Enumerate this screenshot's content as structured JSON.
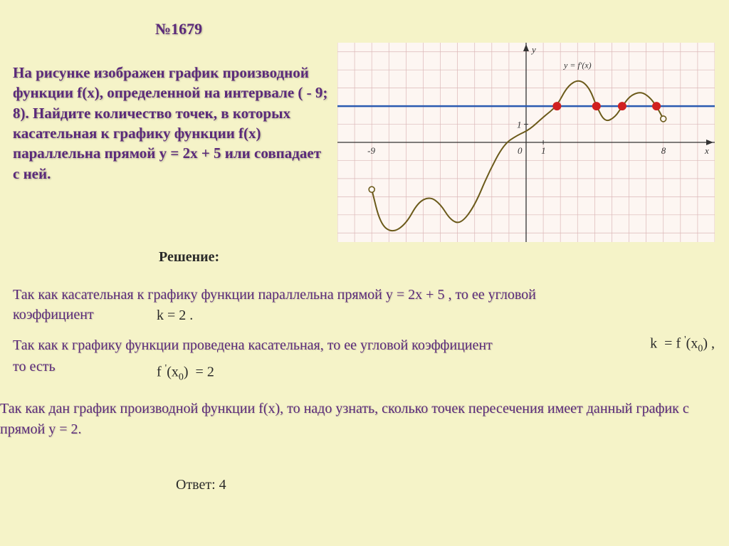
{
  "problem_number": "№1679",
  "problem_text": "На рисунке изображен график производной функции f(x), определенной на интервале ( - 9; 8).  Найдите количество точек, в которых касательная к графику функции f(x) параллельна прямой y = 2x + 5  или совпадает с ней.",
  "y_label": "у  = 2",
  "solution_label": "Решение:",
  "para1_a": "Так как касательная к графику функции параллельна прямой   ",
  "para1_b": "y = 2x + 5 , то ее угловой",
  "para1_c": "коэффициент",
  "k_eq": "k  = 2 .",
  "para2_a": "Так как к графику функции проведена касательная, то ее угловой коэффициент",
  "para2_b": "то есть",
  "k_fprime_html": "k  = f '(x₀) ,",
  "fprime_eq_html": "f '(x₀)  = 2",
  "para3": "Так как дан график производной функции f(x), то надо узнать, сколько точек пересечения имеет данный график с прямой у  = 2.",
  "answer": "Ответ: 4",
  "chart": {
    "type": "line",
    "background_color": "#fdf6f2",
    "grid_color": "#dcb8b8",
    "axis_color": "#333333",
    "curve_color": "#6b5a1a",
    "curve_width": 2,
    "horizontal_line_color": "#2a5ab0",
    "horizontal_line_y": 2,
    "horizontal_line_width": 2.5,
    "intersection_dot_color": "#d02020",
    "intersection_dot_radius": 6,
    "xlim": [
      -11,
      11
    ],
    "ylim": [
      -5.5,
      5.5
    ],
    "x_ticks": [
      -9,
      0,
      1,
      8
    ],
    "y_ticks": [
      0,
      1
    ],
    "function_label": "y = f'(x)",
    "axis_labels": {
      "x": "x",
      "y": "y"
    },
    "intersections_x": [
      1.8,
      4.1,
      5.6,
      7.6
    ],
    "endpoints_x": [
      -9,
      8
    ],
    "endpoint_marker": "open-circle",
    "curve_points": [
      [
        -9,
        -2.6
      ],
      [
        -8.5,
        -4.5
      ],
      [
        -7.8,
        -5.0
      ],
      [
        -7,
        -4.5
      ],
      [
        -6.3,
        -3.3
      ],
      [
        -5.6,
        -3.0
      ],
      [
        -5,
        -3.4
      ],
      [
        -4.4,
        -4.3
      ],
      [
        -3.8,
        -4.5
      ],
      [
        -3,
        -3.5
      ],
      [
        -2.2,
        -1.7
      ],
      [
        -1.3,
        -0.1
      ],
      [
        -0.5,
        0.4
      ],
      [
        0.2,
        0.7
      ],
      [
        1,
        1.4
      ],
      [
        1.8,
        2.0
      ],
      [
        2.4,
        3.1
      ],
      [
        3.1,
        3.5
      ],
      [
        3.7,
        3.0
      ],
      [
        4.1,
        2.0
      ],
      [
        4.6,
        1.1
      ],
      [
        5.2,
        1.4
      ],
      [
        5.6,
        2.0
      ],
      [
        6.1,
        2.6
      ],
      [
        6.7,
        2.8
      ],
      [
        7.2,
        2.5
      ],
      [
        7.6,
        2.0
      ],
      [
        8,
        1.3
      ]
    ]
  }
}
